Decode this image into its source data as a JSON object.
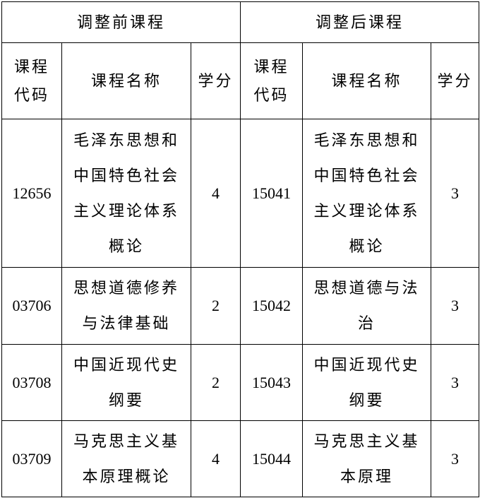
{
  "header": {
    "before": "调整前课程",
    "after": "调整后课程",
    "code": "课程代码",
    "name": "课程名称",
    "credit": "学分"
  },
  "rows": [
    {
      "old_code": "12656",
      "old_name": "毛泽东思想和中国特色社会主义理论体系概论",
      "old_credit": "4",
      "new_code": "15041",
      "new_name": "毛泽东思想和中国特色社会主义理论体系概论",
      "new_credit": "3"
    },
    {
      "old_code": "03706",
      "old_name": "思想道德修养与法律基础",
      "old_credit": "2",
      "new_code": "15042",
      "new_name": "思想道德与法治",
      "new_credit": "3"
    },
    {
      "old_code": "03708",
      "old_name": "中国近现代史纲要",
      "old_credit": "2",
      "new_code": "15043",
      "new_name": "中国近现代史纲要",
      "new_credit": "3"
    },
    {
      "old_code": "03709",
      "old_name": "马克思主义基本原理概论",
      "old_credit": "4",
      "new_code": "15044",
      "new_name": "马克思主义基本原理",
      "new_credit": "3"
    }
  ]
}
